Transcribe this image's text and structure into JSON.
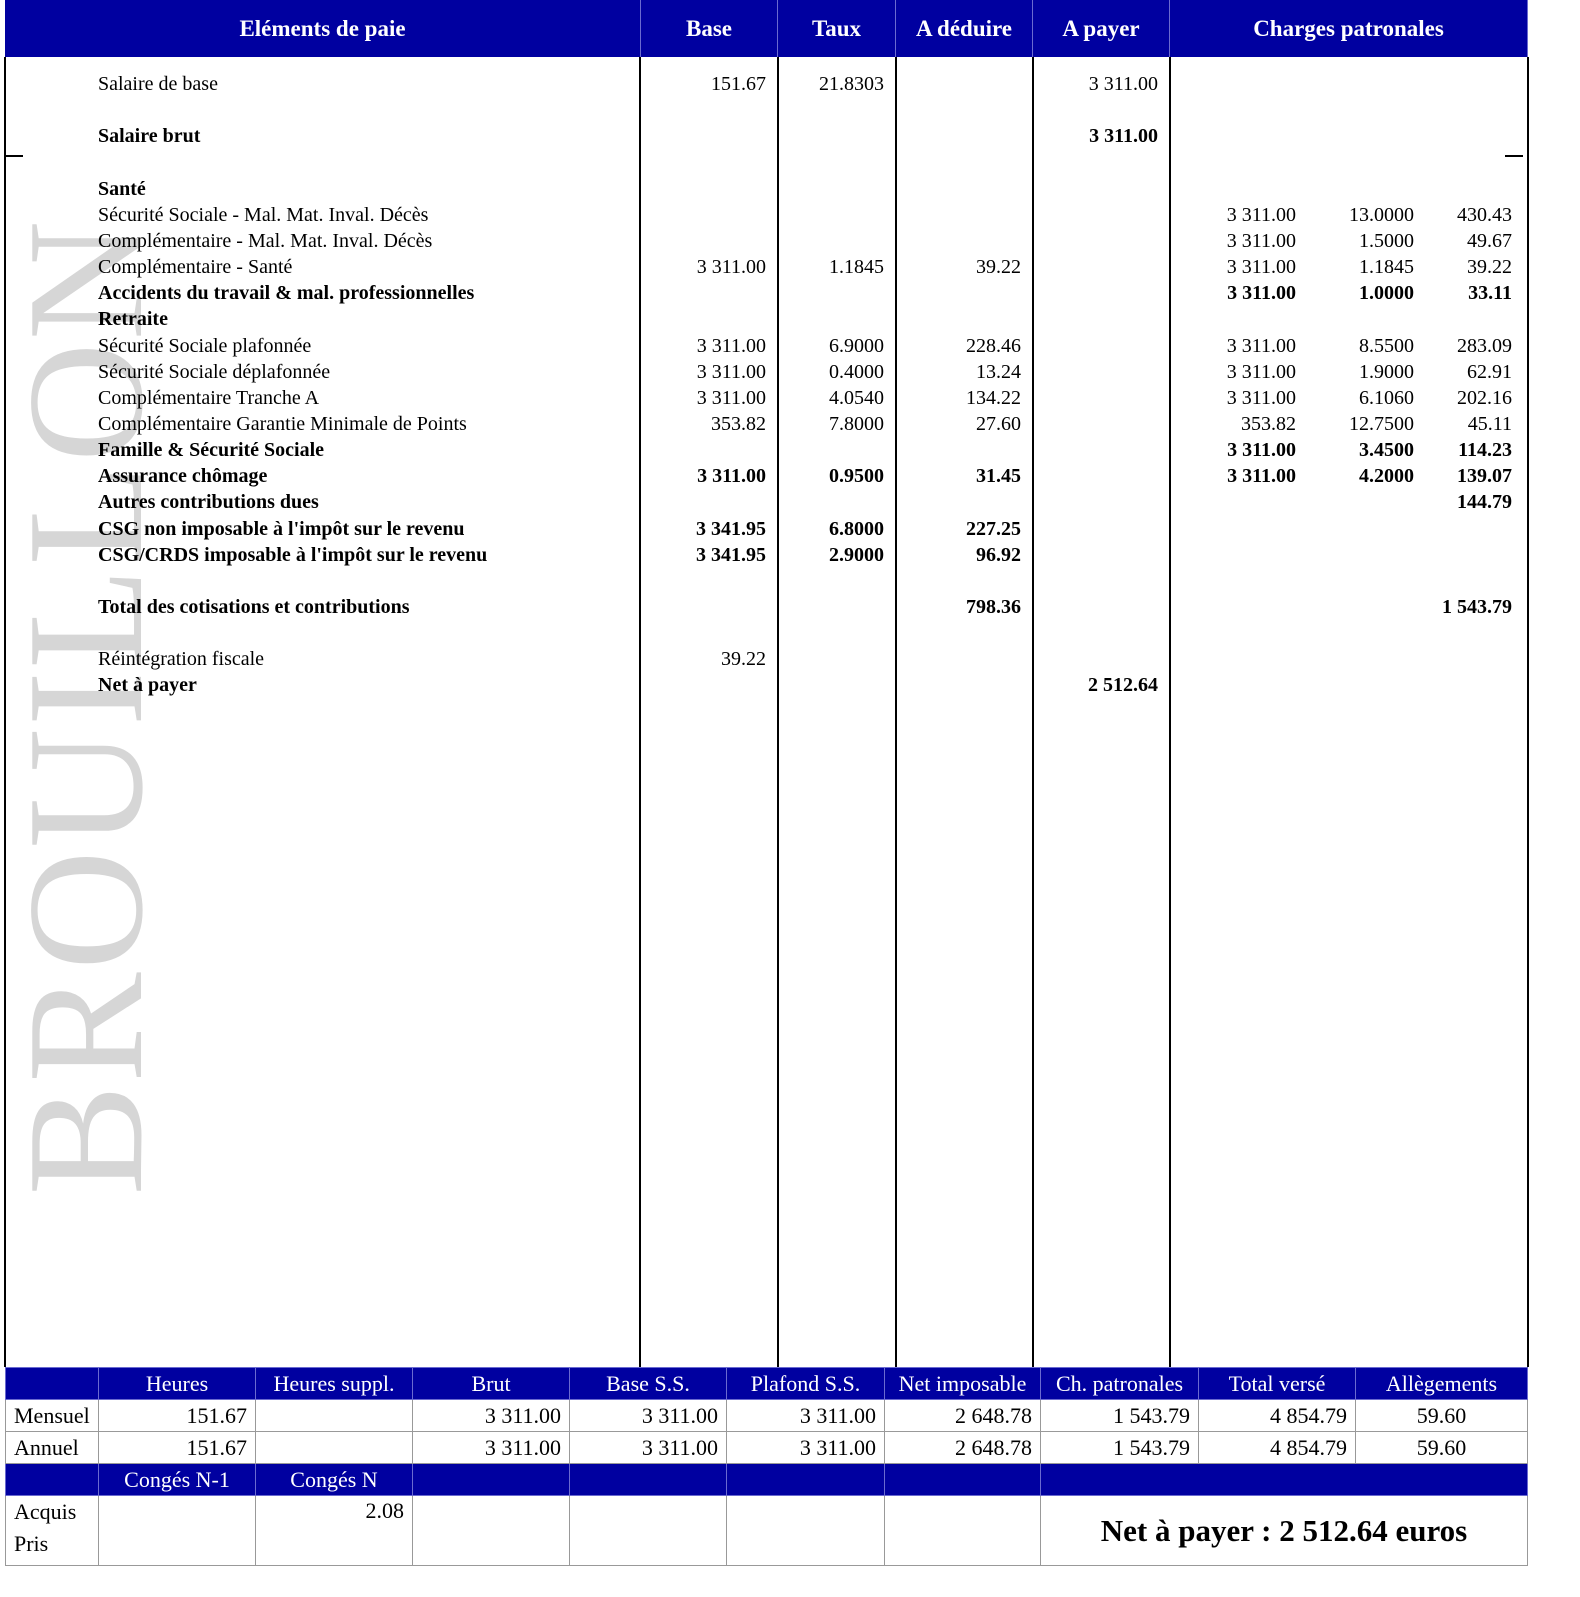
{
  "watermark": "BROUILLON",
  "header": {
    "elements": "Eléments de paie",
    "base": "Base",
    "taux": "Taux",
    "deduire": "A déduire",
    "payer": "A payer",
    "charges": "Charges patronales"
  },
  "rows": [
    {
      "label": "Salaire de base",
      "bold": false,
      "base": "151.67",
      "taux": "21.8303",
      "deduire": "",
      "payer": "3 311.00",
      "cp_base": "",
      "cp_taux": "",
      "cp_montant": ""
    },
    {
      "label": "",
      "bold": false,
      "base": "",
      "taux": "",
      "deduire": "",
      "payer": "",
      "cp_base": "",
      "cp_taux": "",
      "cp_montant": ""
    },
    {
      "label": "Salaire brut",
      "bold": true,
      "base": "",
      "taux": "",
      "deduire": "",
      "payer": "3 311.00",
      "cp_base": "",
      "cp_taux": "",
      "cp_montant": ""
    },
    {
      "label": "",
      "bold": false,
      "base": "",
      "taux": "",
      "deduire": "",
      "payer": "",
      "cp_base": "",
      "cp_taux": "",
      "cp_montant": ""
    },
    {
      "label": "Santé",
      "bold": true,
      "base": "",
      "taux": "",
      "deduire": "",
      "payer": "",
      "cp_base": "",
      "cp_taux": "",
      "cp_montant": ""
    },
    {
      "label": "Sécurité Sociale - Mal. Mat. Inval. Décès",
      "bold": false,
      "base": "",
      "taux": "",
      "deduire": "",
      "payer": "",
      "cp_base": "3 311.00",
      "cp_taux": "13.0000",
      "cp_montant": "430.43"
    },
    {
      "label": "Complémentaire - Mal. Mat. Inval. Décès",
      "bold": false,
      "base": "",
      "taux": "",
      "deduire": "",
      "payer": "",
      "cp_base": "3 311.00",
      "cp_taux": "1.5000",
      "cp_montant": "49.67"
    },
    {
      "label": "Complémentaire - Santé",
      "bold": false,
      "base": "3 311.00",
      "taux": "1.1845",
      "deduire": "39.22",
      "payer": "",
      "cp_base": "3 311.00",
      "cp_taux": "1.1845",
      "cp_montant": "39.22"
    },
    {
      "label": "Accidents du travail & mal. professionnelles",
      "bold": true,
      "base": "",
      "taux": "",
      "deduire": "",
      "payer": "",
      "cp_base": "3 311.00",
      "cp_taux": "1.0000",
      "cp_montant": "33.11"
    },
    {
      "label": "Retraite",
      "bold": true,
      "base": "",
      "taux": "",
      "deduire": "",
      "payer": "",
      "cp_base": "",
      "cp_taux": "",
      "cp_montant": ""
    },
    {
      "label": "Sécurité Sociale plafonnée",
      "bold": false,
      "base": "3 311.00",
      "taux": "6.9000",
      "deduire": "228.46",
      "payer": "",
      "cp_base": "3 311.00",
      "cp_taux": "8.5500",
      "cp_montant": "283.09"
    },
    {
      "label": "Sécurité Sociale déplafonnée",
      "bold": false,
      "base": "3 311.00",
      "taux": "0.4000",
      "deduire": "13.24",
      "payer": "",
      "cp_base": "3 311.00",
      "cp_taux": "1.9000",
      "cp_montant": "62.91"
    },
    {
      "label": "Complémentaire Tranche A",
      "bold": false,
      "base": "3 311.00",
      "taux": "4.0540",
      "deduire": "134.22",
      "payer": "",
      "cp_base": "3 311.00",
      "cp_taux": "6.1060",
      "cp_montant": "202.16"
    },
    {
      "label": "Complémentaire Garantie Minimale de Points",
      "bold": false,
      "base": "353.82",
      "taux": "7.8000",
      "deduire": "27.60",
      "payer": "",
      "cp_base": "353.82",
      "cp_taux": "12.7500",
      "cp_montant": "45.11"
    },
    {
      "label": "Famille & Sécurité Sociale",
      "bold": true,
      "base": "",
      "taux": "",
      "deduire": "",
      "payer": "",
      "cp_base": "3 311.00",
      "cp_taux": "3.4500",
      "cp_montant": "114.23"
    },
    {
      "label": "Assurance chômage",
      "bold": true,
      "base": "3 311.00",
      "taux": "0.9500",
      "deduire": "31.45",
      "payer": "",
      "cp_base": "3 311.00",
      "cp_taux": "4.2000",
      "cp_montant": "139.07"
    },
    {
      "label": "Autres contributions dues",
      "bold": true,
      "base": "",
      "taux": "",
      "deduire": "",
      "payer": "",
      "cp_base": "",
      "cp_taux": "",
      "cp_montant": "144.79"
    },
    {
      "label": "CSG non imposable à l'impôt sur le revenu",
      "bold": true,
      "base": "3 341.95",
      "taux": "6.8000",
      "deduire": "227.25",
      "payer": "",
      "cp_base": "",
      "cp_taux": "",
      "cp_montant": ""
    },
    {
      "label": "CSG/CRDS imposable à l'impôt sur le revenu",
      "bold": true,
      "base": "3 341.95",
      "taux": "2.9000",
      "deduire": "96.92",
      "payer": "",
      "cp_base": "",
      "cp_taux": "",
      "cp_montant": ""
    },
    {
      "label": "",
      "bold": false,
      "base": "",
      "taux": "",
      "deduire": "",
      "payer": "",
      "cp_base": "",
      "cp_taux": "",
      "cp_montant": ""
    },
    {
      "label": "Total des cotisations et contributions",
      "bold": true,
      "base": "",
      "taux": "",
      "deduire": "798.36",
      "payer": "",
      "cp_base": "",
      "cp_taux": "",
      "cp_montant": "1 543.79"
    },
    {
      "label": "",
      "bold": false,
      "base": "",
      "taux": "",
      "deduire": "",
      "payer": "",
      "cp_base": "",
      "cp_taux": "",
      "cp_montant": ""
    },
    {
      "label": "Réintégration fiscale",
      "bold": false,
      "base": "39.22",
      "taux": "",
      "deduire": "",
      "payer": "",
      "cp_base": "",
      "cp_taux": "",
      "cp_montant": ""
    },
    {
      "label": "Net à payer",
      "bold": true,
      "base": "",
      "taux": "",
      "deduire": "",
      "payer": "2 512.64",
      "cp_base": "",
      "cp_taux": "",
      "cp_montant": ""
    }
  ],
  "summary": {
    "headers": [
      "",
      "Heures",
      "Heures suppl.",
      "Brut",
      "Base S.S.",
      "Plafond S.S.",
      "Net imposable",
      "Ch. patronales",
      "Total versé",
      "Allègements"
    ],
    "rows": [
      [
        "Mensuel",
        "151.67",
        "",
        "3 311.00",
        "3 311.00",
        "3 311.00",
        "2 648.78",
        "1 543.79",
        "4 854.79",
        "59.60"
      ],
      [
        "Annuel",
        "151.67",
        "",
        "3 311.00",
        "3 311.00",
        "3 311.00",
        "2 648.78",
        "1 543.79",
        "4 854.79",
        "59.60"
      ]
    ],
    "conges_headers": [
      "",
      "Congés N-1",
      "Congés N"
    ],
    "conges_labels": [
      "Acquis",
      "Pris"
    ],
    "conges_n1": "",
    "conges_n": "2.08",
    "net_a_payer": "Net à payer : 2 512.64 euros"
  },
  "colors": {
    "header_bg": "#0000a0",
    "header_text": "#ffffff",
    "watermark": "#d6d6d6"
  }
}
